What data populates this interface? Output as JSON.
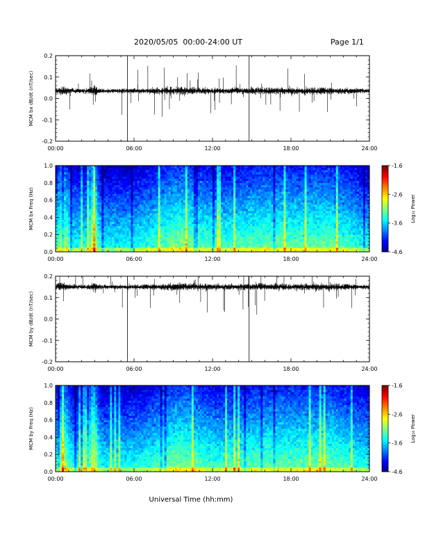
{
  "header": {
    "title": "2020/05/05  00:00-24:00 UT",
    "page": "Page 1/1"
  },
  "xlabel": "Universal Time (hh:mm)",
  "chart_data": [
    {
      "type": "line",
      "ylabel": "MCM bx dB/dt (nT/sec)",
      "xlim": [
        0,
        24
      ],
      "ylim": [
        -0.2,
        0.2
      ],
      "x_ticks": [
        "00:00",
        "06:00",
        "12:00",
        "18:00",
        "24:00"
      ],
      "y_ticks": [
        "-0.2",
        "-0.1",
        "0.0",
        "0.1",
        "0.2"
      ],
      "baseline": 0.035,
      "spikes": [
        [
          5.5,
          -0.2,
          0.2
        ],
        [
          14.8,
          -0.2,
          0.2
        ]
      ]
    },
    {
      "type": "heatmap",
      "ylabel": "MCM bx Freq (Hz)",
      "xlim": [
        0,
        24
      ],
      "ylim": [
        0,
        1
      ],
      "x_ticks": [
        "00:00",
        "06:00",
        "12:00",
        "18:00",
        "24:00"
      ],
      "y_ticks": [
        "0.0",
        "0.2",
        "0.4",
        "0.6",
        "0.8",
        "1.0"
      ],
      "colorbar": {
        "label": "Log₁₀ Power",
        "range": [
          -4.6,
          -1.6
        ],
        "ticks": [
          "-1.6",
          "-2.6",
          "-3.6",
          "-4.6"
        ]
      }
    },
    {
      "type": "line",
      "ylabel": "MCM by dB/dt (nT/sec)",
      "xlim": [
        0,
        24
      ],
      "ylim": [
        -0.2,
        0.2
      ],
      "x_ticks": [
        "00:00",
        "06:00",
        "12:00",
        "18:00",
        "24:00"
      ],
      "y_ticks": [
        "-0.2",
        "-0.1",
        "0.0",
        "0.1",
        "0.2"
      ],
      "baseline": 0.15,
      "spikes": [
        [
          5.5,
          -0.2,
          0.2
        ],
        [
          14.8,
          -0.2,
          0.2
        ]
      ]
    },
    {
      "type": "heatmap",
      "ylabel": "MCM by Freq (Hz)",
      "xlim": [
        0,
        24
      ],
      "ylim": [
        0,
        1
      ],
      "x_ticks": [
        "00:00",
        "06:00",
        "12:00",
        "18:00",
        "24:00"
      ],
      "y_ticks": [
        "0.0",
        "0.2",
        "0.4",
        "0.6",
        "0.8",
        "1.0"
      ],
      "colorbar": {
        "label": "Log₁₀ Power",
        "range": [
          -4.6,
          -1.6
        ],
        "ticks": [
          "-1.6",
          "-2.6",
          "-3.6",
          "-4.6"
        ]
      }
    }
  ]
}
